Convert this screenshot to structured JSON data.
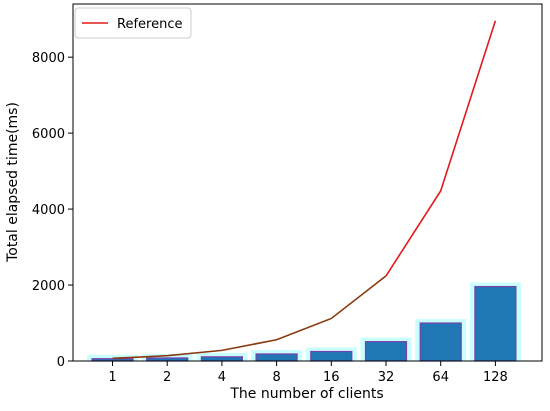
{
  "chart_data": {
    "type": "bar",
    "categories": [
      "1",
      "2",
      "4",
      "8",
      "16",
      "32",
      "64",
      "128"
    ],
    "series": [
      {
        "kind": "bar",
        "values": [
          60,
          80,
          110,
          185,
          250,
          510,
          1000,
          1960
        ],
        "color": "#1f77b4",
        "halo_color": "#b8ffff",
        "edge_color": "#7a3fb0"
      },
      {
        "kind": "line",
        "name": "Reference",
        "values": [
          70,
          140,
          280,
          560,
          1120,
          2240,
          4480,
          8960
        ],
        "color": "#e31a1c",
        "lower_color": "#8b3a10"
      }
    ],
    "title": "",
    "xlabel": "The number of clients",
    "ylabel": "Total elapsed time(ms)",
    "ylim": [
      0,
      9400
    ],
    "yticks": [
      0,
      2000,
      4000,
      6000,
      8000
    ],
    "legend": {
      "position": "top-left",
      "entries": [
        "Reference"
      ]
    },
    "grid": false
  }
}
